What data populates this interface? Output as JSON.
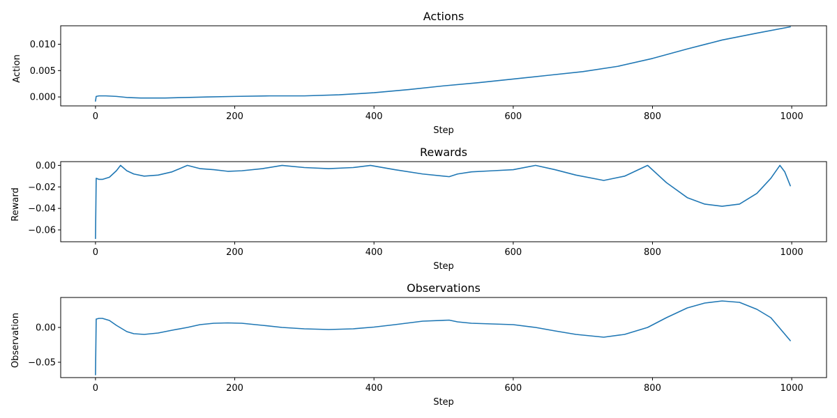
{
  "chart_data": [
    {
      "type": "line",
      "title": "Actions",
      "xlabel": "Step",
      "ylabel": "Action",
      "xlim": [
        -50,
        1050
      ],
      "ylim": [
        -0.0017,
        0.0135
      ],
      "xticks": [
        0,
        200,
        400,
        600,
        800,
        1000
      ],
      "xtick_labels": [
        "0",
        "200",
        "400",
        "600",
        "800",
        "1000"
      ],
      "yticks": [
        0.0,
        0.005,
        0.01
      ],
      "ytick_labels": [
        "0.000",
        "0.005",
        "0.010"
      ],
      "grid": false,
      "color": "#1f77b4",
      "series": [
        {
          "x": [
            0,
            1,
            5,
            15,
            30,
            45,
            65,
            100,
            130,
            160,
            200,
            250,
            300,
            350,
            400,
            450,
            500,
            550,
            600,
            650,
            700,
            750,
            800,
            850,
            900,
            950,
            998
          ],
          "y": [
            -0.0008,
            0.0001,
            0.0002,
            0.0002,
            0.0001,
            -0.0001,
            -0.0002,
            -0.0002,
            -0.0001,
            0.0,
            0.0001,
            0.0002,
            0.0002,
            0.0004,
            0.0008,
            0.0014,
            0.0021,
            0.0027,
            0.0034,
            0.0041,
            0.0048,
            0.0058,
            0.0073,
            0.0091,
            0.0108,
            0.0121,
            0.0133
          ]
        }
      ]
    },
    {
      "type": "line",
      "title": "Rewards",
      "xlabel": "Step",
      "ylabel": "Reward",
      "xlim": [
        -50,
        1050
      ],
      "ylim": [
        -0.071,
        0.0035
      ],
      "xticks": [
        0,
        200,
        400,
        600,
        800,
        1000
      ],
      "xtick_labels": [
        "0",
        "200",
        "400",
        "600",
        "800",
        "1000"
      ],
      "yticks": [
        -0.06,
        -0.04,
        -0.02,
        0.0
      ],
      "ytick_labels": [
        "−0.06",
        "−0.04",
        "−0.02",
        "0.00"
      ],
      "grid": false,
      "color": "#1f77b4",
      "series": [
        {
          "x": [
            0,
            1,
            5,
            10,
            20,
            30,
            36,
            45,
            55,
            70,
            90,
            110,
            132,
            150,
            170,
            190,
            210,
            240,
            268,
            300,
            335,
            370,
            395,
            430,
            470,
            508,
            520,
            540,
            570,
            600,
            632,
            660,
            690,
            730,
            760,
            793,
            820,
            850,
            875,
            900,
            925,
            950,
            970,
            983,
            990,
            998
          ],
          "y": [
            -0.068,
            -0.012,
            -0.013,
            -0.013,
            -0.011,
            -0.005,
            0.0,
            -0.005,
            -0.008,
            -0.01,
            -0.009,
            -0.006,
            0.0,
            -0.003,
            -0.004,
            -0.0055,
            -0.005,
            -0.003,
            0.0,
            -0.002,
            -0.003,
            -0.002,
            0.0,
            -0.004,
            -0.008,
            -0.0105,
            -0.008,
            -0.006,
            -0.005,
            -0.004,
            0.0,
            -0.004,
            -0.009,
            -0.014,
            -0.01,
            0.0,
            -0.016,
            -0.03,
            -0.036,
            -0.038,
            -0.036,
            -0.026,
            -0.012,
            0.0,
            -0.006,
            -0.019
          ]
        }
      ]
    },
    {
      "type": "line",
      "title": "Observations",
      "xlabel": "Step",
      "ylabel": "Observation",
      "xlim": [
        -50,
        1050
      ],
      "ylim": [
        -0.072,
        0.043
      ],
      "xticks": [
        0,
        200,
        400,
        600,
        800,
        1000
      ],
      "xtick_labels": [
        "0",
        "200",
        "400",
        "600",
        "800",
        "1000"
      ],
      "yticks": [
        -0.05,
        0.0
      ],
      "ytick_labels": [
        "−0.05",
        "0.00"
      ],
      "grid": false,
      "color": "#1f77b4",
      "series": [
        {
          "x": [
            0,
            1,
            5,
            10,
            20,
            30,
            45,
            55,
            70,
            90,
            110,
            132,
            150,
            170,
            190,
            210,
            240,
            268,
            300,
            335,
            370,
            400,
            430,
            470,
            508,
            520,
            540,
            570,
            600,
            632,
            660,
            690,
            730,
            760,
            793,
            820,
            850,
            875,
            900,
            925,
            950,
            970,
            998
          ],
          "y": [
            -0.068,
            0.012,
            0.013,
            0.013,
            0.01,
            0.003,
            -0.006,
            -0.009,
            -0.01,
            -0.008,
            -0.004,
            0.0,
            0.004,
            0.006,
            0.0065,
            0.006,
            0.003,
            0.0,
            -0.002,
            -0.003,
            -0.002,
            0.0005,
            0.004,
            0.009,
            0.0105,
            0.008,
            0.006,
            0.005,
            0.004,
            0.0,
            -0.005,
            -0.01,
            -0.014,
            -0.01,
            0.0,
            0.014,
            0.028,
            0.035,
            0.038,
            0.036,
            0.026,
            0.014,
            -0.019
          ]
        }
      ]
    }
  ]
}
